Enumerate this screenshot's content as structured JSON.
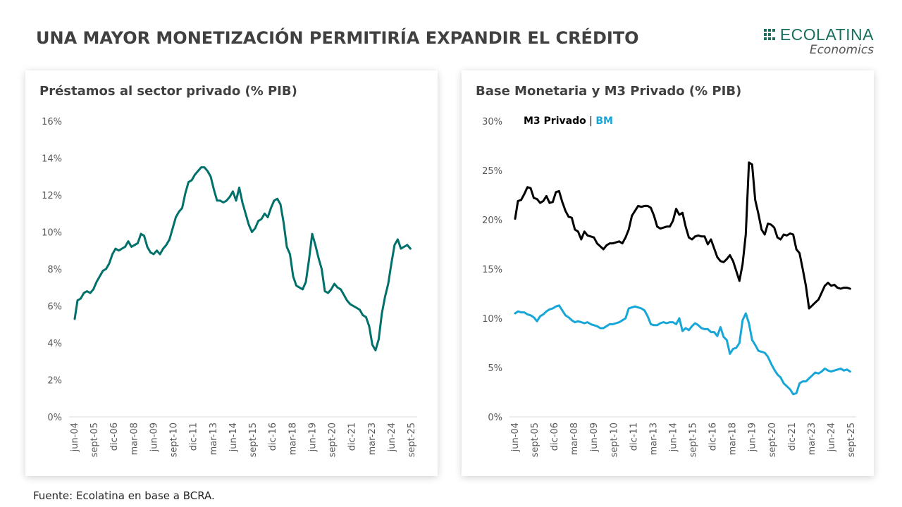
{
  "header": {
    "title": "UNA MAYOR MONETIZACIÓN PERMITIRÍA EXPANDIR EL CRÉDITO",
    "logo_name": "ECOLATINA",
    "logo_sub": "Economics",
    "logo_icon": "grid-dots-icon",
    "brand_color": "#1a6e5e"
  },
  "footer": {
    "source": "Fuente: Ecolatina en base a BCRA."
  },
  "chart_data": [
    {
      "type": "line",
      "title": "Préstamos al sector privado (% PIB)",
      "xlabel": "",
      "ylabel": "",
      "ylim": [
        0,
        16
      ],
      "yticks": [
        0,
        2,
        4,
        6,
        8,
        10,
        12,
        14,
        16
      ],
      "ytick_labels": [
        "0%",
        "2%",
        "4%",
        "6%",
        "8%",
        "10%",
        "12%",
        "14%",
        "16%"
      ],
      "xlim": [
        2004.42,
        2025.67
      ],
      "xticks": [
        2004.42,
        2005.67,
        2006.92,
        2008.17,
        2009.42,
        2010.67,
        2011.92,
        2013.17,
        2014.42,
        2015.67,
        2016.92,
        2018.17,
        2019.42,
        2020.67,
        2021.92,
        2023.17,
        2024.42,
        2025.67
      ],
      "xtick_labels": [
        "jun-04",
        "sept-05",
        "dic-06",
        "mar-08",
        "jun-09",
        "sept-10",
        "dic-11",
        "mar-13",
        "jun-14",
        "sept-15",
        "dic-16",
        "mar-18",
        "jun-19",
        "sept-20",
        "dic-21",
        "mar-23",
        "jun-24",
        "sept-25"
      ],
      "grid": false,
      "legend": "none",
      "series": [
        {
          "name": "Préstamos al sector privado",
          "color": "#00706a",
          "x": [
            2004.42,
            2004.6,
            2004.8,
            2005.0,
            2005.2,
            2005.4,
            2005.6,
            2005.8,
            2006.0,
            2006.2,
            2006.4,
            2006.6,
            2006.8,
            2007.0,
            2007.2,
            2007.4,
            2007.6,
            2007.8,
            2008.0,
            2008.2,
            2008.4,
            2008.6,
            2008.8,
            2009.0,
            2009.2,
            2009.4,
            2009.6,
            2009.8,
            2010.0,
            2010.2,
            2010.4,
            2010.6,
            2010.8,
            2011.0,
            2011.2,
            2011.4,
            2011.6,
            2011.8,
            2012.0,
            2012.2,
            2012.4,
            2012.6,
            2012.8,
            2013.0,
            2013.2,
            2013.4,
            2013.6,
            2013.8,
            2014.0,
            2014.2,
            2014.4,
            2014.6,
            2014.8,
            2015.0,
            2015.2,
            2015.4,
            2015.6,
            2015.8,
            2016.0,
            2016.2,
            2016.4,
            2016.6,
            2016.8,
            2017.0,
            2017.2,
            2017.4,
            2017.6,
            2017.8,
            2018.0,
            2018.2,
            2018.4,
            2018.6,
            2018.8,
            2019.0,
            2019.2,
            2019.4,
            2019.6,
            2019.8,
            2020.0,
            2020.2,
            2020.4,
            2020.6,
            2020.8,
            2021.0,
            2021.2,
            2021.4,
            2021.6,
            2021.8,
            2022.0,
            2022.2,
            2022.4,
            2022.6,
            2022.8,
            2023.0,
            2023.2,
            2023.4,
            2023.6,
            2023.8,
            2024.0,
            2024.2,
            2024.4,
            2024.6,
            2024.8,
            2025.0,
            2025.2,
            2025.4,
            2025.6
          ],
          "values": [
            5.3,
            6.3,
            6.4,
            6.7,
            6.8,
            6.7,
            6.9,
            7.3,
            7.6,
            7.9,
            8.0,
            8.3,
            8.8,
            9.1,
            9.0,
            9.1,
            9.2,
            9.5,
            9.2,
            9.3,
            9.4,
            9.9,
            9.8,
            9.2,
            8.9,
            8.8,
            9.0,
            8.8,
            9.1,
            9.3,
            9.6,
            10.2,
            10.8,
            11.1,
            11.3,
            12.1,
            12.7,
            12.8,
            13.1,
            13.3,
            13.5,
            13.5,
            13.3,
            13.0,
            12.3,
            11.7,
            11.7,
            11.6,
            11.7,
            11.9,
            12.2,
            11.7,
            12.4,
            11.6,
            11.0,
            10.4,
            10.0,
            10.2,
            10.6,
            10.7,
            11.0,
            10.8,
            11.3,
            11.7,
            11.8,
            11.5,
            10.5,
            9.2,
            8.8,
            7.6,
            7.1,
            7.0,
            6.9,
            7.3,
            8.5,
            9.9,
            9.3,
            8.6,
            8.0,
            6.8,
            6.7,
            6.9,
            7.2,
            7.0,
            6.9,
            6.6,
            6.3,
            6.1,
            6.0,
            5.9,
            5.8,
            5.5,
            5.4,
            4.9,
            3.9,
            3.6,
            4.2,
            5.6,
            6.5,
            7.2,
            8.3,
            9.3,
            9.6,
            9.1,
            9.2,
            9.3,
            9.1
          ]
        }
      ]
    },
    {
      "type": "line",
      "title": "Base Monetaria y M3 Privado (% PIB)",
      "xlabel": "",
      "ylabel": "",
      "ylim": [
        0,
        30
      ],
      "yticks": [
        0,
        5,
        10,
        15,
        20,
        25,
        30
      ],
      "ytick_labels": [
        "0%",
        "5%",
        "10%",
        "15%",
        "20%",
        "25%",
        "30%"
      ],
      "xlim": [
        2004.42,
        2025.67
      ],
      "xticks": [
        2004.42,
        2005.67,
        2006.92,
        2008.17,
        2009.42,
        2010.67,
        2011.92,
        2013.17,
        2014.42,
        2015.67,
        2016.92,
        2018.17,
        2019.42,
        2020.67,
        2021.92,
        2023.17,
        2024.42,
        2025.67
      ],
      "xtick_labels": [
        "jun-04",
        "sept-05",
        "dic-06",
        "mar-08",
        "jun-09",
        "sept-10",
        "dic-11",
        "mar-13",
        "jun-14",
        "sept-15",
        "dic-16",
        "mar-18",
        "jun-19",
        "sept-20",
        "dic-21",
        "mar-23",
        "jun-24",
        "sept-25"
      ],
      "grid": false,
      "legend": "top-left",
      "legend_labels": {
        "m3": "M3 Privado",
        "separator": " | ",
        "bm": "BM"
      },
      "series": [
        {
          "name": "M3 Privado",
          "color": "#000000",
          "x": [
            2004.42,
            2004.6,
            2004.8,
            2005.0,
            2005.2,
            2005.4,
            2005.6,
            2005.8,
            2006.0,
            2006.2,
            2006.4,
            2006.6,
            2006.8,
            2007.0,
            2007.2,
            2007.4,
            2007.6,
            2007.8,
            2008.0,
            2008.2,
            2008.4,
            2008.6,
            2008.8,
            2009.0,
            2009.2,
            2009.4,
            2009.6,
            2009.8,
            2010.0,
            2010.2,
            2010.4,
            2010.6,
            2010.8,
            2011.0,
            2011.2,
            2011.4,
            2011.6,
            2011.8,
            2012.0,
            2012.2,
            2012.4,
            2012.6,
            2012.8,
            2013.0,
            2013.2,
            2013.4,
            2013.6,
            2013.8,
            2014.0,
            2014.2,
            2014.4,
            2014.6,
            2014.8,
            2015.0,
            2015.2,
            2015.4,
            2015.6,
            2015.8,
            2016.0,
            2016.2,
            2016.4,
            2016.6,
            2016.8,
            2017.0,
            2017.2,
            2017.4,
            2017.6,
            2017.8,
            2018.0,
            2018.2,
            2018.4,
            2018.6,
            2018.8,
            2019.0,
            2019.2,
            2019.4,
            2019.6,
            2019.8,
            2020.0,
            2020.2,
            2020.4,
            2020.6,
            2020.8,
            2021.0,
            2021.2,
            2021.4,
            2021.6,
            2021.8,
            2022.0,
            2022.2,
            2022.4,
            2022.6,
            2022.8,
            2023.0,
            2023.2,
            2023.4,
            2023.6,
            2023.8,
            2024.0,
            2024.2,
            2024.4,
            2024.6,
            2024.8,
            2025.0,
            2025.2,
            2025.4,
            2025.6
          ],
          "values": [
            20.1,
            21.9,
            22.0,
            22.6,
            23.3,
            23.2,
            22.2,
            22.1,
            21.7,
            21.9,
            22.4,
            21.7,
            21.8,
            22.8,
            22.9,
            21.8,
            20.9,
            20.3,
            20.2,
            19.0,
            18.8,
            18.0,
            18.8,
            18.4,
            18.3,
            18.2,
            17.6,
            17.3,
            17.0,
            17.4,
            17.6,
            17.6,
            17.7,
            17.8,
            17.6,
            18.2,
            19.0,
            20.4,
            20.9,
            21.4,
            21.3,
            21.4,
            21.4,
            21.2,
            20.4,
            19.3,
            19.1,
            19.2,
            19.3,
            19.3,
            19.9,
            21.1,
            20.5,
            20.7,
            19.3,
            18.2,
            18.0,
            18.3,
            18.4,
            18.3,
            18.3,
            17.5,
            18.0,
            17.1,
            16.2,
            15.8,
            15.7,
            16.0,
            16.4,
            15.8,
            14.8,
            13.8,
            15.5,
            18.5,
            25.8,
            25.6,
            22.0,
            20.6,
            19.0,
            18.5,
            19.6,
            19.5,
            19.2,
            18.2,
            18.0,
            18.5,
            18.4,
            18.6,
            18.5,
            17.0,
            16.6,
            15.0,
            13.3,
            11.0,
            11.3,
            11.6,
            11.9,
            12.6,
            13.3,
            13.6,
            13.3,
            13.4,
            13.1,
            13.0,
            13.1,
            13.1,
            13.0
          ]
        },
        {
          "name": "BM",
          "color": "#17a6d8",
          "x": [
            2004.42,
            2004.6,
            2004.8,
            2005.0,
            2005.2,
            2005.4,
            2005.6,
            2005.8,
            2006.0,
            2006.2,
            2006.4,
            2006.6,
            2006.8,
            2007.0,
            2007.2,
            2007.4,
            2007.6,
            2007.8,
            2008.0,
            2008.2,
            2008.4,
            2008.6,
            2008.8,
            2009.0,
            2009.2,
            2009.4,
            2009.6,
            2009.8,
            2010.0,
            2010.2,
            2010.4,
            2010.6,
            2010.8,
            2011.0,
            2011.2,
            2011.4,
            2011.6,
            2011.8,
            2012.0,
            2012.2,
            2012.4,
            2012.6,
            2012.8,
            2013.0,
            2013.2,
            2013.4,
            2013.6,
            2013.8,
            2014.0,
            2014.2,
            2014.4,
            2014.6,
            2014.8,
            2015.0,
            2015.2,
            2015.4,
            2015.6,
            2015.8,
            2016.0,
            2016.2,
            2016.4,
            2016.6,
            2016.8,
            2017.0,
            2017.2,
            2017.4,
            2017.6,
            2017.8,
            2018.0,
            2018.2,
            2018.4,
            2018.6,
            2018.8,
            2019.0,
            2019.2,
            2019.4,
            2019.6,
            2019.8,
            2020.0,
            2020.2,
            2020.4,
            2020.6,
            2020.8,
            2021.0,
            2021.2,
            2021.4,
            2021.6,
            2021.8,
            2022.0,
            2022.2,
            2022.4,
            2022.6,
            2022.8,
            2023.0,
            2023.2,
            2023.4,
            2023.6,
            2023.8,
            2024.0,
            2024.2,
            2024.4,
            2024.6,
            2024.8,
            2025.0,
            2025.2,
            2025.4,
            2025.6
          ],
          "values": [
            10.5,
            10.7,
            10.6,
            10.6,
            10.4,
            10.3,
            10.1,
            9.7,
            10.2,
            10.4,
            10.7,
            10.9,
            11.0,
            11.2,
            11.3,
            10.8,
            10.3,
            10.1,
            9.8,
            9.6,
            9.7,
            9.6,
            9.5,
            9.6,
            9.4,
            9.3,
            9.2,
            9.0,
            9.0,
            9.2,
            9.4,
            9.4,
            9.5,
            9.6,
            9.8,
            10.0,
            11.0,
            11.1,
            11.2,
            11.1,
            11.0,
            10.8,
            10.2,
            9.4,
            9.3,
            9.3,
            9.5,
            9.6,
            9.5,
            9.6,
            9.6,
            9.4,
            10.0,
            8.7,
            9.0,
            8.8,
            9.2,
            9.5,
            9.3,
            9.0,
            8.9,
            8.9,
            8.6,
            8.6,
            8.2,
            9.1,
            8.1,
            7.8,
            6.4,
            6.9,
            7.0,
            7.5,
            9.8,
            10.5,
            9.5,
            7.8,
            7.3,
            6.7,
            6.6,
            6.5,
            6.1,
            5.4,
            4.8,
            4.3,
            4.0,
            3.4,
            3.1,
            2.8,
            2.3,
            2.4,
            3.4,
            3.6,
            3.6,
            3.9,
            4.2,
            4.5,
            4.4,
            4.6,
            4.9,
            4.7,
            4.6,
            4.7,
            4.8,
            4.9,
            4.7,
            4.8,
            4.6
          ]
        }
      ]
    }
  ]
}
